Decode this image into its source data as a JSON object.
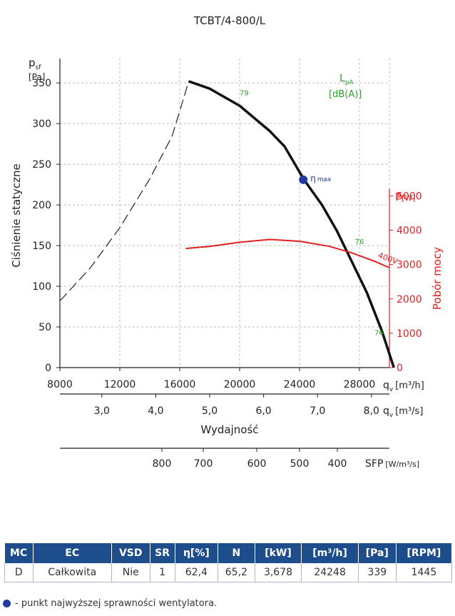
{
  "chart_data": {
    "type": "line",
    "title": "TCBT/4-800/L",
    "colors": {
      "pressure": "#111111",
      "power": "#e02020",
      "sound": "#2ca02c",
      "eta": "#1f3a9e",
      "table_header": "#1e4d8c"
    },
    "left_axis": {
      "label_symbol": "p",
      "label_sub": "sf",
      "unit": "[Pa]",
      "title": "Ciśnienie statyczne",
      "ticks": [
        "0",
        "50",
        "100",
        "150",
        "200",
        "250",
        "300",
        "350"
      ],
      "range": [
        0,
        380
      ]
    },
    "right_axis": {
      "label": "P",
      "unit": "[W]",
      "title": "Pobór mocy",
      "ticks": [
        "0",
        "1000",
        "2000",
        "3000",
        "4000",
        "5000"
      ],
      "range": [
        0,
        9000
      ]
    },
    "sound_label": {
      "symbol": "L",
      "sub": "pA",
      "unit": "[dB(A)]"
    },
    "x_axis_h": {
      "ticks": [
        "8000",
        "12000",
        "16000",
        "20000",
        "24000",
        "28000"
      ],
      "label_symbol": "q",
      "label_sub": "v",
      "unit": "[m³/h]",
      "range": [
        8000,
        30000
      ]
    },
    "x_axis_s": {
      "ticks": [
        "3,0",
        "4,0",
        "5,0",
        "6,0",
        "7,0",
        "8,0"
      ],
      "values": [
        3.0,
        4.0,
        5.0,
        6.0,
        7.0,
        8.0
      ],
      "label_symbol": "q",
      "label_sub": "v",
      "unit": "[m³/s]",
      "title": "Wydajność"
    },
    "sfp_axis": {
      "ticks": [
        "800",
        "700",
        "600",
        "500",
        "400"
      ],
      "values": [
        800,
        700,
        600,
        500,
        400
      ],
      "label": "SFP",
      "unit": "[W/m³/s]"
    },
    "series": [
      {
        "name": "pressure",
        "x": [
          16600,
          18000,
          20000,
          22000,
          23000,
          24300,
          25500,
          26500,
          27500,
          28500,
          29500,
          30300
        ],
        "y": [
          352,
          343,
          322,
          291,
          272,
          231,
          200,
          168,
          130,
          92,
          45,
          0
        ]
      },
      {
        "name": "stall",
        "x": [
          8000,
          10000,
          12000,
          14000,
          15500,
          16600
        ],
        "y": [
          82,
          122,
          172,
          232,
          285,
          352
        ]
      },
      {
        "name": "power",
        "x": [
          16400,
          18000,
          20000,
          22000,
          24000,
          26000,
          27500,
          29000,
          30000
        ],
        "y": [
          3470,
          3530,
          3650,
          3730,
          3680,
          3530,
          3340,
          3100,
          2910
        ]
      }
    ],
    "eta_point": {
      "x": 24248,
      "y": 231,
      "label": "η",
      "sub": "max"
    },
    "annotations": [
      {
        "text": "79",
        "x": 20000,
        "y": 335
      },
      {
        "text": "76",
        "x": 27700,
        "y": 152
      },
      {
        "text": "76",
        "x": 29000,
        "y": 40
      },
      {
        "text": "400V",
        "x": 29200,
        "y": 3210
      }
    ]
  },
  "table": {
    "headers": [
      "MC",
      "EC",
      "VSD",
      "SR",
      "η[%]",
      "N",
      "[kW]",
      "[m³/h]",
      "[Pa]",
      "[RPM]"
    ],
    "row": [
      "D",
      "Całkowita",
      "Nie",
      "1",
      "62,4",
      "65,2",
      "3,678",
      "24248",
      "339",
      "1445"
    ]
  },
  "legend_note": "- punkt najwyższej sprawności wentylatora."
}
